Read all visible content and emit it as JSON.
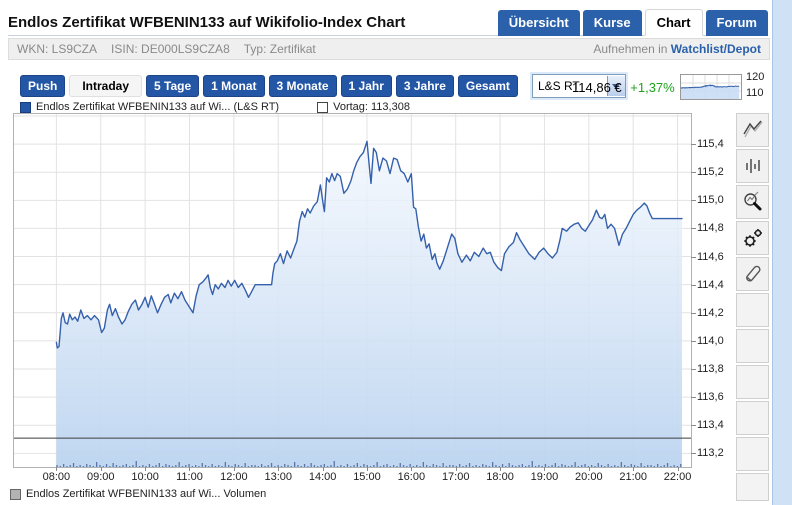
{
  "header": {
    "title": "Endlos Zertifikat WFBENIN133 auf Wikifolio-Index Chart",
    "tabs": [
      "Übersicht",
      "Kurse",
      "Chart",
      "Forum"
    ],
    "active_tab": "Chart"
  },
  "info_bar": {
    "items": [
      "WKN: LS9CZA",
      "ISIN: DE000LS9CZA8",
      "Typ: Zertifikat"
    ],
    "watch_prefix": "Aufnehmen in",
    "watch_link": "Watchlist/Depot"
  },
  "toolbar": {
    "push_label": "Push",
    "ranges": [
      "Intraday",
      "5 Tage",
      "1 Monat",
      "3 Monate",
      "1 Jahr",
      "3 Jahre",
      "Gesamt"
    ],
    "active_range": "Intraday",
    "feed_select": "L&S RT",
    "price": "114,86 €",
    "change": "+1,37%",
    "mini_labels": [
      "120",
      "110"
    ]
  },
  "legend": {
    "series_label": "Endlos Zertifikat WFBENIN133 auf Wi... (L&S RT)",
    "vortag_label": "Vortag: 113,308"
  },
  "bottom_legend": "Endlos Zertifikat WFBENIN133 auf Wi... Volumen",
  "sidebar_tools": [
    "chart-type",
    "bar-chart",
    "zoom",
    "settings",
    "draw"
  ],
  "chart_data": {
    "type": "line",
    "title": "Endlos Zertifikat WFBENIN133 auf Wikifolio-Index Chart",
    "x_ticks": [
      "08:00",
      "09:00",
      "10:00",
      "11:00",
      "12:00",
      "13:00",
      "14:00",
      "15:00",
      "16:00",
      "17:00",
      "18:00",
      "19:00",
      "20:00",
      "21:00",
      "22:00"
    ],
    "y_ticks": [
      115.4,
      115.2,
      115.0,
      114.8,
      114.6,
      114.4,
      114.2,
      114.0,
      113.8,
      113.6,
      113.4,
      113.2
    ],
    "xlim_hours": [
      7.045,
      22.303
    ],
    "ylim": [
      113.103,
      115.614
    ],
    "grid": true,
    "legend_position": "top-left",
    "previous_close": 113.308,
    "last_price": 114.86,
    "change_pct": 1.37,
    "mini_chart_ylim": [
      110,
      120
    ],
    "colors": {
      "line": "#3560ac",
      "fill_top": "#f2f7fd",
      "fill_bottom": "#bcd4f0",
      "grid": "#e2e2e2",
      "previous_close_line": "#3c3c3c",
      "volume": "#44659c"
    },
    "series": [
      {
        "name": "Endlos Zertifikat WFBENIN133 auf Wikifolio-Index (L&S RT)",
        "points": [
          [
            8.0,
            113.99
          ],
          [
            8.02,
            113.95
          ],
          [
            8.06,
            113.96
          ],
          [
            8.09,
            114.08
          ],
          [
            8.11,
            114.16
          ],
          [
            8.15,
            114.2
          ],
          [
            8.2,
            114.13
          ],
          [
            8.25,
            114.12
          ],
          [
            8.3,
            114.19
          ],
          [
            8.36,
            114.15
          ],
          [
            8.42,
            114.17
          ],
          [
            8.48,
            114.14
          ],
          [
            8.55,
            114.22
          ],
          [
            8.62,
            114.16
          ],
          [
            8.7,
            114.18
          ],
          [
            8.78,
            114.15
          ],
          [
            8.86,
            114.18
          ],
          [
            8.95,
            114.15
          ],
          [
            9.02,
            114.06
          ],
          [
            9.08,
            114.09
          ],
          [
            9.15,
            114.22
          ],
          [
            9.2,
            114.26
          ],
          [
            9.26,
            114.18
          ],
          [
            9.33,
            114.23
          ],
          [
            9.4,
            114.17
          ],
          [
            9.48,
            114.12
          ],
          [
            9.55,
            114.15
          ],
          [
            9.62,
            114.21
          ],
          [
            9.7,
            114.26
          ],
          [
            9.78,
            114.29
          ],
          [
            9.85,
            114.22
          ],
          [
            9.93,
            114.26
          ],
          [
            10.0,
            114.31
          ],
          [
            10.07,
            114.24
          ],
          [
            10.14,
            114.32
          ],
          [
            10.2,
            114.27
          ],
          [
            10.28,
            114.2
          ],
          [
            10.36,
            114.26
          ],
          [
            10.44,
            114.31
          ],
          [
            10.52,
            114.33
          ],
          [
            10.58,
            114.27
          ],
          [
            10.66,
            114.34
          ],
          [
            10.74,
            114.3
          ],
          [
            10.82,
            114.35
          ],
          [
            10.9,
            114.29
          ],
          [
            11.0,
            114.24
          ],
          [
            11.08,
            114.2
          ],
          [
            11.15,
            114.32
          ],
          [
            11.22,
            114.4
          ],
          [
            11.3,
            114.42
          ],
          [
            11.38,
            114.45
          ],
          [
            11.42,
            114.47
          ],
          [
            11.47,
            114.38
          ],
          [
            11.52,
            114.33
          ],
          [
            11.58,
            114.4
          ],
          [
            11.65,
            114.37
          ],
          [
            11.72,
            114.41
          ],
          [
            11.8,
            114.38
          ],
          [
            11.87,
            114.43
          ],
          [
            11.94,
            114.39
          ],
          [
            12.02,
            114.43
          ],
          [
            12.1,
            114.38
          ],
          [
            12.18,
            114.41
          ],
          [
            12.26,
            114.36
          ],
          [
            12.33,
            114.31
          ],
          [
            12.4,
            114.35
          ],
          [
            12.48,
            114.4
          ],
          [
            12.85,
            114.4
          ],
          [
            12.88,
            114.48
          ],
          [
            12.92,
            114.55
          ],
          [
            12.98,
            114.57
          ],
          [
            13.05,
            114.62
          ],
          [
            13.12,
            114.55
          ],
          [
            13.2,
            114.64
          ],
          [
            13.28,
            114.59
          ],
          [
            13.36,
            114.66
          ],
          [
            13.42,
            114.71
          ],
          [
            13.48,
            114.85
          ],
          [
            13.54,
            114.92
          ],
          [
            13.6,
            114.88
          ],
          [
            13.66,
            114.94
          ],
          [
            13.72,
            114.91
          ],
          [
            13.8,
            114.96
          ],
          [
            13.88,
            114.99
          ],
          [
            13.95,
            115.11
          ],
          [
            14.0,
            115.0
          ],
          [
            14.04,
            114.92
          ],
          [
            14.09,
            115.16
          ],
          [
            14.15,
            115.13
          ],
          [
            14.21,
            115.19
          ],
          [
            14.27,
            115.14
          ],
          [
            14.33,
            115.19
          ],
          [
            14.4,
            115.17
          ],
          [
            14.48,
            115.05
          ],
          [
            14.56,
            115.08
          ],
          [
            14.64,
            115.14
          ],
          [
            14.7,
            115.21
          ],
          [
            14.77,
            115.27
          ],
          [
            14.84,
            115.31
          ],
          [
            14.92,
            115.34
          ],
          [
            15.0,
            115.42
          ],
          [
            15.05,
            115.25
          ],
          [
            15.09,
            115.12
          ],
          [
            15.15,
            115.37
          ],
          [
            15.21,
            115.34
          ],
          [
            15.28,
            115.21
          ],
          [
            15.36,
            115.3
          ],
          [
            15.44,
            115.28
          ],
          [
            15.52,
            115.19
          ],
          [
            15.6,
            115.3
          ],
          [
            15.68,
            115.29
          ],
          [
            15.76,
            115.21
          ],
          [
            15.84,
            115.19
          ],
          [
            15.92,
            115.13
          ],
          [
            16.0,
            115.19
          ],
          [
            16.05,
            114.95
          ],
          [
            16.1,
            114.94
          ],
          [
            16.16,
            114.81
          ],
          [
            16.22,
            114.71
          ],
          [
            16.28,
            114.76
          ],
          [
            16.34,
            114.66
          ],
          [
            16.4,
            114.69
          ],
          [
            16.47,
            114.58
          ],
          [
            16.53,
            114.62
          ],
          [
            16.58,
            114.55
          ],
          [
            16.64,
            114.51
          ],
          [
            16.72,
            114.57
          ],
          [
            16.79,
            114.64
          ],
          [
            16.86,
            114.71
          ],
          [
            16.91,
            114.76
          ],
          [
            16.98,
            114.73
          ],
          [
            17.05,
            114.62
          ],
          [
            17.14,
            114.56
          ],
          [
            17.24,
            114.61
          ],
          [
            17.33,
            114.57
          ],
          [
            17.42,
            114.63
          ],
          [
            17.52,
            114.6
          ],
          [
            17.62,
            114.66
          ],
          [
            17.7,
            114.62
          ],
          [
            17.78,
            114.63
          ],
          [
            17.86,
            114.56
          ],
          [
            17.95,
            114.52
          ],
          [
            18.03,
            114.5
          ],
          [
            18.1,
            114.62
          ],
          [
            18.2,
            114.67
          ],
          [
            18.3,
            114.7
          ],
          [
            18.37,
            114.77
          ],
          [
            18.45,
            114.72
          ],
          [
            18.55,
            114.67
          ],
          [
            18.65,
            114.62
          ],
          [
            18.78,
            114.58
          ],
          [
            18.88,
            114.63
          ],
          [
            18.98,
            114.66
          ],
          [
            19.08,
            114.62
          ],
          [
            19.18,
            114.59
          ],
          [
            19.28,
            114.63
          ],
          [
            19.35,
            114.72
          ],
          [
            19.4,
            114.8
          ],
          [
            19.5,
            114.78
          ],
          [
            19.58,
            114.81
          ],
          [
            19.67,
            114.83
          ],
          [
            19.76,
            114.84
          ],
          [
            19.84,
            114.8
          ],
          [
            19.92,
            114.78
          ],
          [
            20.0,
            114.82
          ],
          [
            20.08,
            114.86
          ],
          [
            20.17,
            114.93
          ],
          [
            20.24,
            114.88
          ],
          [
            20.3,
            114.87
          ],
          [
            20.36,
            114.9
          ],
          [
            20.42,
            114.8
          ],
          [
            20.5,
            114.83
          ],
          [
            20.58,
            114.8
          ],
          [
            20.68,
            114.68
          ],
          [
            20.76,
            114.76
          ],
          [
            20.84,
            114.8
          ],
          [
            20.92,
            114.85
          ],
          [
            21.0,
            114.9
          ],
          [
            21.08,
            114.93
          ],
          [
            21.16,
            114.95
          ],
          [
            21.25,
            114.98
          ],
          [
            21.31,
            114.96
          ],
          [
            21.37,
            114.91
          ],
          [
            21.43,
            114.87
          ],
          [
            22.1,
            114.87
          ]
        ]
      }
    ],
    "volume_profile": [
      2,
      1,
      3,
      1,
      2,
      4,
      1,
      2,
      1,
      3,
      2,
      1,
      5,
      2,
      1,
      3,
      1,
      4,
      2,
      1,
      2,
      3,
      1,
      2,
      6,
      1,
      2,
      1,
      3,
      1,
      2,
      4,
      1,
      3,
      2,
      1,
      2,
      5,
      1,
      2,
      3,
      1,
      2,
      1,
      4,
      2,
      1,
      3,
      1,
      2,
      1,
      5,
      2,
      1,
      3,
      2,
      1,
      4,
      1,
      2
    ]
  }
}
